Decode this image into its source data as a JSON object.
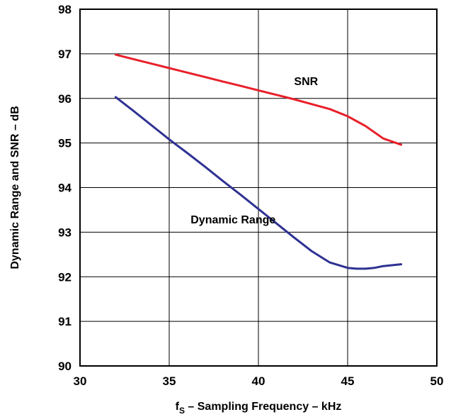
{
  "chart_data": {
    "type": "line",
    "title": "",
    "xlabel_main": "f",
    "xlabel_sub": "S",
    "xlabel_rest": " – Sampling Frequency – kHz",
    "ylabel": "Dynamic Range and SNR – dB",
    "xlim": [
      30,
      50
    ],
    "ylim": [
      90,
      98
    ],
    "x_ticks": [
      "30",
      "35",
      "40",
      "45",
      "50"
    ],
    "y_ticks": [
      "90",
      "91",
      "92",
      "93",
      "94",
      "95",
      "96",
      "97",
      "98"
    ],
    "grid": true,
    "series": [
      {
        "name": "SNR",
        "color": "#e8202a",
        "x": [
          32,
          33,
          34,
          35,
          36,
          37,
          38,
          39,
          40,
          41,
          42,
          43,
          44,
          45,
          46,
          47,
          48
        ],
        "y": [
          96.98,
          96.88,
          96.78,
          96.68,
          96.58,
          96.48,
          96.38,
          96.28,
          96.18,
          96.08,
          95.98,
          95.87,
          95.76,
          95.6,
          95.38,
          95.1,
          94.96
        ]
      },
      {
        "name": "Dynamic Range",
        "color": "#2e3192",
        "x": [
          32,
          33,
          34,
          35,
          36,
          37,
          38,
          39,
          40,
          41,
          42,
          43,
          44,
          45,
          45.5,
          46,
          46.5,
          47,
          48
        ],
        "y": [
          96.03,
          95.72,
          95.4,
          95.08,
          94.78,
          94.47,
          94.15,
          93.84,
          93.52,
          93.2,
          92.88,
          92.57,
          92.32,
          92.2,
          92.18,
          92.18,
          92.2,
          92.24,
          92.28
        ]
      }
    ]
  }
}
